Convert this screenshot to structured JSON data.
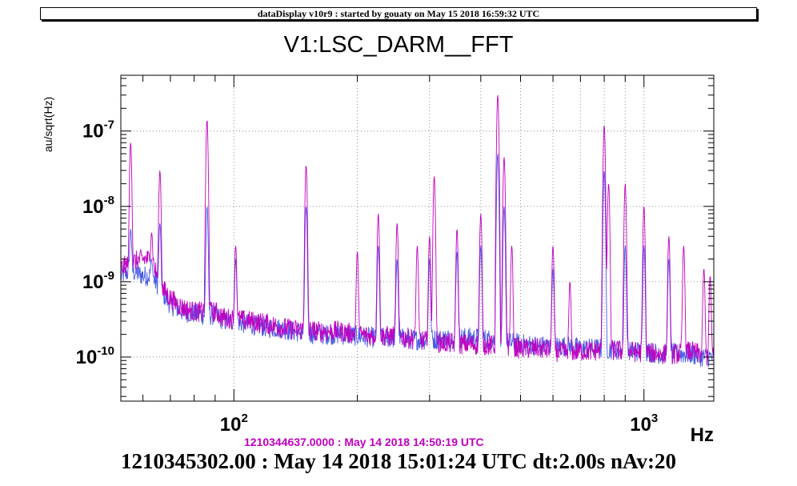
{
  "header": {
    "text": "dataDisplay v10r9 : started by gouaty on May 15 2018 16:59:32 UTC"
  },
  "chart_data": {
    "type": "line",
    "title": "V1:LSC_DARM__FFT",
    "ylabel": "au/sqrt(Hz)",
    "xlabel": "Hz",
    "xscale": "log",
    "yscale": "log",
    "xlim": [
      53,
      1480
    ],
    "ylim": [
      2.6e-11,
      5.5e-07
    ],
    "grid": true,
    "x_ticks": [
      {
        "base": "10",
        "exp": "2"
      },
      {
        "base": "10",
        "exp": "3"
      }
    ],
    "y_ticks": [
      {
        "base": "10",
        "exp": "-10"
      },
      {
        "base": "10",
        "exp": "-9"
      },
      {
        "base": "10",
        "exp": "-8"
      },
      {
        "base": "10",
        "exp": "-7"
      }
    ],
    "series": [
      {
        "color": "#c000c0",
        "baseline": [
          [
            53,
            1.5e-09
          ],
          [
            56,
            1.8e-09
          ],
          [
            60,
            2e-09
          ],
          [
            63,
            2e-09
          ],
          [
            66,
            9e-10
          ],
          [
            70,
            6e-10
          ],
          [
            75,
            4.5e-10
          ],
          [
            80,
            4e-10
          ],
          [
            85,
            4e-10
          ],
          [
            90,
            4e-10
          ],
          [
            95,
            3.3e-10
          ],
          [
            100,
            3.2e-10
          ],
          [
            110,
            3e-10
          ],
          [
            120,
            2.8e-10
          ],
          [
            130,
            2.5e-10
          ],
          [
            140,
            2.3e-10
          ],
          [
            150,
            2.3e-10
          ],
          [
            160,
            2.2e-10
          ],
          [
            170,
            2.2e-10
          ],
          [
            180,
            2.2e-10
          ],
          [
            200,
            2e-10
          ],
          [
            220,
            1.9e-10
          ],
          [
            250,
            1.9e-10
          ],
          [
            280,
            1.7e-10
          ],
          [
            300,
            1.6e-10
          ],
          [
            350,
            1.5e-10
          ],
          [
            400,
            1.45e-10
          ],
          [
            450,
            1.4e-10
          ],
          [
            500,
            1.3e-10
          ],
          [
            560,
            1.3e-10
          ],
          [
            600,
            1.2e-10
          ],
          [
            650,
            1.15e-10
          ],
          [
            700,
            1.2e-10
          ],
          [
            750,
            1.2e-10
          ],
          [
            800,
            1.25e-10
          ],
          [
            900,
            1.2e-10
          ],
          [
            1000,
            1.15e-10
          ],
          [
            1100,
            1.1e-10
          ],
          [
            1200,
            1.1e-10
          ],
          [
            1300,
            1.2e-10
          ],
          [
            1400,
            1.05e-10
          ],
          [
            1480,
            1e-10
          ]
        ],
        "peaks": [
          [
            56,
            7e-08
          ],
          [
            63,
            4.5e-09
          ],
          [
            66,
            3e-08
          ],
          [
            86,
            1.4e-07
          ],
          [
            101,
            3e-09
          ],
          [
            150,
            3.5e-08
          ],
          [
            200,
            2.5e-09
          ],
          [
            225,
            8e-09
          ],
          [
            250,
            6e-09
          ],
          [
            280,
            3e-09
          ],
          [
            300,
            4e-09
          ],
          [
            308,
            2.5e-08
          ],
          [
            350,
            5e-09
          ],
          [
            400,
            8e-09
          ],
          [
            440,
            3e-07
          ],
          [
            456,
            4.5e-08
          ],
          [
            476,
            3e-09
          ],
          [
            600,
            3e-09
          ],
          [
            660,
            1e-09
          ],
          [
            800,
            1.2e-07
          ],
          [
            820,
            2e-08
          ],
          [
            900,
            2e-08
          ],
          [
            1000,
            1e-08
          ],
          [
            1150,
            4e-09
          ],
          [
            1250,
            3e-09
          ],
          [
            1400,
            1.5e-09
          ],
          [
            1450,
            1.2e-09
          ]
        ]
      },
      {
        "color": "#4a5ce6",
        "baseline": [
          [
            53,
            1.2e-09
          ],
          [
            56,
            1.4e-09
          ],
          [
            60,
            1.2e-09
          ],
          [
            63,
            1.2e-09
          ],
          [
            66,
            8e-10
          ],
          [
            70,
            5e-10
          ],
          [
            75,
            4e-10
          ],
          [
            80,
            3.8e-10
          ],
          [
            85,
            3.6e-10
          ],
          [
            90,
            3.6e-10
          ],
          [
            95,
            3e-10
          ],
          [
            100,
            3e-10
          ],
          [
            110,
            2.7e-10
          ],
          [
            120,
            2.5e-10
          ],
          [
            130,
            2.4e-10
          ],
          [
            140,
            2.2e-10
          ],
          [
            150,
            2.1e-10
          ],
          [
            160,
            2e-10
          ],
          [
            170,
            2e-10
          ],
          [
            180,
            2e-10
          ],
          [
            200,
            1.9e-10
          ],
          [
            220,
            1.8e-10
          ],
          [
            250,
            1.8e-10
          ],
          [
            280,
            1.7e-10
          ],
          [
            300,
            1.7e-10
          ],
          [
            350,
            1.8e-10
          ],
          [
            400,
            1.8e-10
          ],
          [
            450,
            1.6e-10
          ],
          [
            500,
            1.5e-10
          ],
          [
            560,
            1.4e-10
          ],
          [
            600,
            1.4e-10
          ],
          [
            650,
            1.4e-10
          ],
          [
            700,
            1.3e-10
          ],
          [
            750,
            1.3e-10
          ],
          [
            800,
            1.3e-10
          ],
          [
            900,
            1.2e-10
          ],
          [
            1000,
            1.2e-10
          ],
          [
            1100,
            1.1e-10
          ],
          [
            1200,
            1.1e-10
          ],
          [
            1300,
            1.1e-10
          ],
          [
            1400,
            1e-10
          ],
          [
            1480,
            1e-10
          ]
        ],
        "peaks": [
          [
            56,
            5e-09
          ],
          [
            63,
            2e-09
          ],
          [
            66,
            6e-09
          ],
          [
            86,
            1e-08
          ],
          [
            101,
            2e-09
          ],
          [
            150,
            1e-08
          ],
          [
            225,
            3e-09
          ],
          [
            250,
            2e-09
          ],
          [
            300,
            2e-09
          ],
          [
            350,
            2.5e-09
          ],
          [
            400,
            3e-09
          ],
          [
            440,
            5e-08
          ],
          [
            456,
            1e-08
          ],
          [
            600,
            1.5e-09
          ],
          [
            800,
            3e-08
          ],
          [
            900,
            3e-09
          ],
          [
            1000,
            3e-09
          ],
          [
            1150,
            2e-09
          ]
        ]
      }
    ]
  },
  "subtitle": "1210344637.0000 : May 14 2018 14:50:19 UTC",
  "footer": "1210345302.00 : May 14 2018 15:01:24 UTC dt:2.00s nAv:20"
}
